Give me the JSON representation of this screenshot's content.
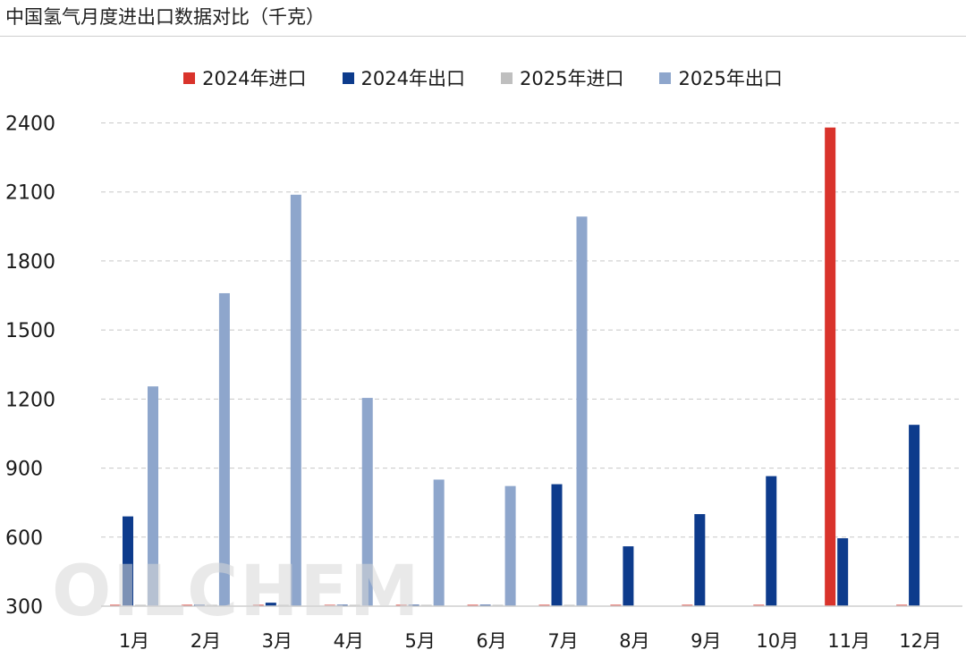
{
  "header": {
    "title": "中国氢气月度进出口数据对比（千克）"
  },
  "watermark": {
    "text": "OILCHEM"
  },
  "chart_data": {
    "type": "bar",
    "title": "中国氢气月度进出口数据对比（千克）",
    "xlabel": "",
    "ylabel": "",
    "categories": [
      "1月",
      "2月",
      "3月",
      "4月",
      "5月",
      "6月",
      "7月",
      "8月",
      "9月",
      "10月",
      "11月",
      "12月"
    ],
    "yticks": [
      "300",
      "600",
      "900",
      "1200",
      "1500",
      "1800",
      "2100",
      "2400"
    ],
    "ylim": [
      300,
      2500
    ],
    "grid": true,
    "legend_position": "top",
    "series": [
      {
        "name": "2024年进口",
        "color": "#d9332b",
        "values": [
          300,
          300,
          300,
          300,
          300,
          300,
          300,
          300,
          300,
          300,
          2380,
          300
        ]
      },
      {
        "name": "2024年出口",
        "color": "#0d3b8c",
        "values": [
          690,
          300,
          315,
          300,
          300,
          300,
          830,
          560,
          700,
          865,
          595,
          1088
        ]
      },
      {
        "name": "2025年进口",
        "color": "#bfbfbf",
        "values": [
          300,
          300,
          300,
          300,
          300,
          300,
          300,
          null,
          null,
          null,
          null,
          null
        ]
      },
      {
        "name": "2025年出口",
        "color": "#8ea6cc",
        "values": [
          1255,
          1660,
          2088,
          1205,
          850,
          822,
          1993,
          null,
          null,
          null,
          null,
          null
        ]
      }
    ]
  }
}
